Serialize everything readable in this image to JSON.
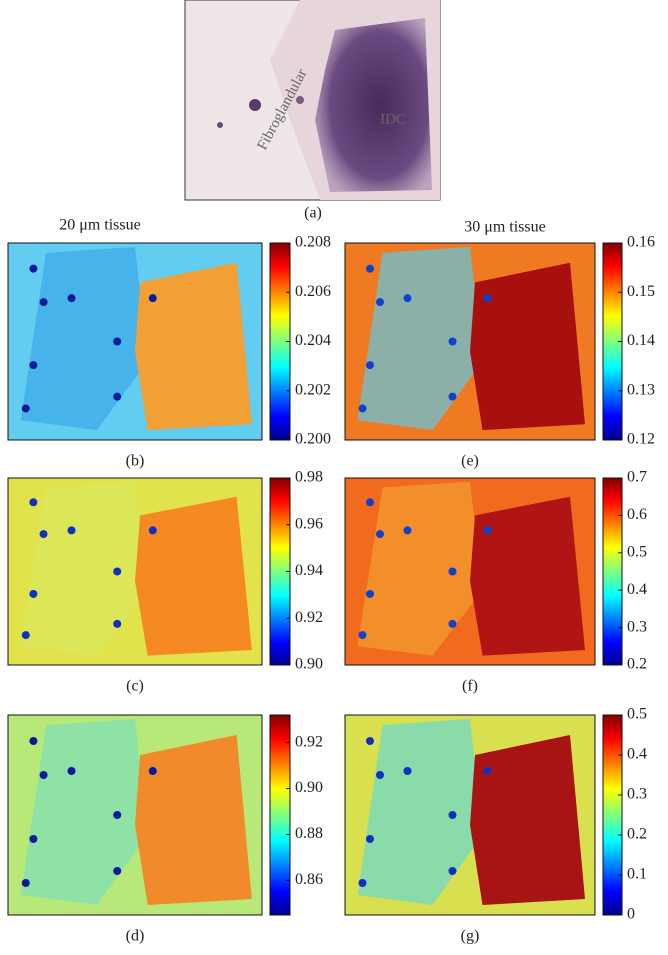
{
  "photo": {
    "label": "(a)",
    "annotations": [
      "Fibroglandular",
      "IDC"
    ]
  },
  "column_titles": [
    "20 μm tissue",
    "30 μm tissue"
  ],
  "colormap": "jet",
  "panels": [
    {
      "label": "(b)",
      "clim": [
        0.2,
        0.208
      ],
      "ticks": [
        {
          "value": 0.2,
          "label": "0.200"
        },
        0.202,
        0.204,
        0.206,
        0.208
      ]
    },
    {
      "label": "(c)",
      "clim": [
        0.9,
        0.98
      ],
      "ticks": [
        {
          "value": 0.9,
          "label": "0.90"
        },
        0.92,
        0.94,
        0.96,
        0.98
      ]
    },
    {
      "label": "(d)",
      "clim": [
        0.845,
        0.932
      ],
      "ticks": [
        0.86,
        0.88,
        {
          "value": 0.9,
          "label": "0.90"
        },
        0.92
      ]
    },
    {
      "label": "(e)",
      "clim": [
        0.12,
        0.16
      ],
      "ticks": [
        0.12,
        0.13,
        0.14,
        0.15,
        0.16
      ]
    },
    {
      "label": "(f)",
      "clim": [
        0.2,
        0.7
      ],
      "ticks": [
        0.2,
        0.3,
        0.4,
        0.5,
        0.6,
        0.7
      ]
    },
    {
      "label": "(g)",
      "clim": [
        0,
        0.5
      ],
      "ticks": [
        0,
        0.1,
        0.2,
        0.3,
        0.4,
        0.5
      ]
    }
  ]
}
